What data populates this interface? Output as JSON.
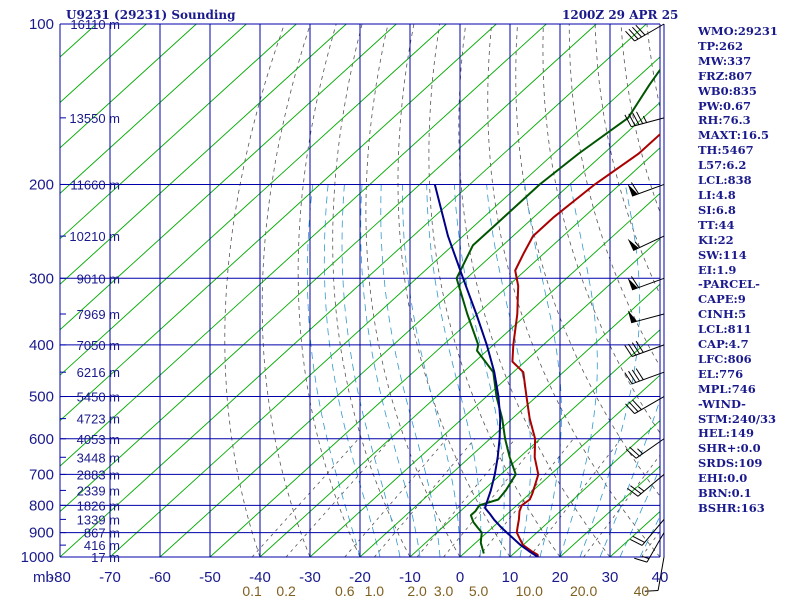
{
  "header": {
    "station": "U9231 (29231) Sounding",
    "valid_time": "1200Z 29 APR 25"
  },
  "indices": [
    "WMO:29231",
    "TP:262",
    "MW:337",
    "FRZ:807",
    "WB0:835",
    "PW:0.67",
    "RH:76.3",
    "MAXT:16.5",
    "TH:5467",
    "L57:6.2",
    "LCL:838",
    "LI:4.8",
    "SI:6.8",
    "TT:44",
    "KI:22",
    "SW:114",
    "EI:1.9",
    "-PARCEL-",
    "CAPE:9",
    "CINH:5",
    "LCL:811",
    "CAP:4.7",
    "LFC:806",
    "EL:776",
    "MPL:746",
    "-WIND-",
    "STM:240/33",
    "HEL:149",
    "SHR+:0.0",
    "SRDS:109",
    "EHI:0.0",
    "BRN:0.1",
    "BSHR:163"
  ],
  "colors": {
    "grid": "#0000aa",
    "axis_text": "#1a1a8c",
    "isotherm": "#00aa00",
    "dry_adiabat": "#555555",
    "moist_adiabat": "#3399cc",
    "temperature": "#aa0000",
    "dewpoint": "#005500",
    "parcel": "#000088",
    "mixing_ratio_text": "#806020",
    "wind_barb": "#000000"
  },
  "chart_data": {
    "type": "skew-t log-p sounding",
    "pressure_levels_mb": [
      100,
      200,
      300,
      400,
      500,
      600,
      700,
      800,
      900,
      1000
    ],
    "pressure_axis_unit": "mb",
    "temperature_ticks_c": [
      -80,
      -70,
      -60,
      -50,
      -40,
      -30,
      -20,
      -10,
      0,
      10,
      20,
      30,
      40
    ],
    "xlim_c": [
      -80,
      40
    ],
    "ylim_mb": [
      100,
      1000
    ],
    "mixing_ratio_labels": [
      "0.1",
      "0.2",
      "0.6",
      "1.0",
      "2.0",
      "3.0",
      "5.0",
      "10.0",
      "20.0",
      "40"
    ],
    "mixing_ratio_unit": "g/kg",
    "height_labels": [
      {
        "p": 100,
        "label": "16110 m"
      },
      {
        "p": 150,
        "label": "13550 m"
      },
      {
        "p": 200,
        "label": "11660 m"
      },
      {
        "p": 250,
        "label": "10210 m"
      },
      {
        "p": 300,
        "label": "9010 m"
      },
      {
        "p": 350,
        "label": "7969 m"
      },
      {
        "p": 400,
        "label": "7050 m"
      },
      {
        "p": 450,
        "label": "6216 m"
      },
      {
        "p": 500,
        "label": "5450 m"
      },
      {
        "p": 550,
        "label": "4723 m"
      },
      {
        "p": 600,
        "label": "4053 m"
      },
      {
        "p": 650,
        "label": "3448 m"
      },
      {
        "p": 700,
        "label": "2883 m"
      },
      {
        "p": 750,
        "label": "2339 m"
      },
      {
        "p": 800,
        "label": "1826 m"
      },
      {
        "p": 850,
        "label": "1339 m"
      },
      {
        "p": 900,
        "label": "867 m"
      },
      {
        "p": 950,
        "label": "416 m"
      },
      {
        "p": 1000,
        "label": "17 m"
      }
    ],
    "series": [
      {
        "name": "temperature",
        "color": "#aa0000",
        "points": [
          [
            1000,
            15.6
          ],
          [
            990,
            15
          ],
          [
            975,
            13
          ],
          [
            950,
            10
          ],
          [
            925,
            8
          ],
          [
            900,
            6
          ],
          [
            880,
            5
          ],
          [
            850,
            3.5
          ],
          [
            820,
            1.8
          ],
          [
            800,
            1
          ],
          [
            780,
            1.3
          ],
          [
            760,
            0.5
          ],
          [
            700,
            -2.5
          ],
          [
            650,
            -7
          ],
          [
            600,
            -11
          ],
          [
            550,
            -16.5
          ],
          [
            500,
            -22
          ],
          [
            450,
            -28
          ],
          [
            430,
            -32.5
          ],
          [
            400,
            -36
          ],
          [
            350,
            -42
          ],
          [
            310,
            -48
          ],
          [
            290,
            -52
          ],
          [
            270,
            -54
          ],
          [
            250,
            -56
          ],
          [
            230,
            -56
          ],
          [
            200,
            -55
          ],
          [
            175,
            -53
          ],
          [
            150,
            -53
          ],
          [
            130,
            -56
          ],
          [
            120,
            -57
          ],
          [
            110,
            -54
          ],
          [
            100,
            -56
          ]
        ]
      },
      {
        "name": "dewpoint",
        "color": "#005500",
        "points": [
          [
            985,
            4
          ],
          [
            970,
            3
          ],
          [
            940,
            1
          ],
          [
            920,
            0
          ],
          [
            900,
            -1
          ],
          [
            880,
            -3
          ],
          [
            860,
            -5
          ],
          [
            835,
            -7
          ],
          [
            820,
            -7
          ],
          [
            800,
            -7.5
          ],
          [
            780,
            -5
          ],
          [
            750,
            -5.5
          ],
          [
            700,
            -7
          ],
          [
            650,
            -12
          ],
          [
            600,
            -17
          ],
          [
            550,
            -22
          ],
          [
            500,
            -28
          ],
          [
            450,
            -34
          ],
          [
            410,
            -42
          ],
          [
            400,
            -43
          ],
          [
            350,
            -52
          ],
          [
            300,
            -62
          ],
          [
            260,
            -66
          ],
          [
            240,
            -66
          ],
          [
            200,
            -66
          ],
          [
            175,
            -65
          ],
          [
            150,
            -63
          ],
          [
            130,
            -66
          ],
          [
            110,
            -69
          ],
          [
            100,
            -70
          ]
        ]
      },
      {
        "name": "parcel",
        "color": "#000088",
        "points": [
          [
            1000,
            15.6
          ],
          [
            975,
            12.5
          ],
          [
            950,
            9.5
          ],
          [
            925,
            6.8
          ],
          [
            900,
            4
          ],
          [
            875,
            1.2
          ],
          [
            850,
            -1.5
          ],
          [
            830,
            -3.5
          ],
          [
            810,
            -5.7
          ],
          [
            800,
            -6.2
          ],
          [
            750,
            -8.5
          ],
          [
            700,
            -11.2
          ],
          [
            650,
            -14.4
          ],
          [
            600,
            -18.1
          ],
          [
            550,
            -22.4
          ],
          [
            500,
            -27.6
          ],
          [
            450,
            -33.8
          ],
          [
            400,
            -41.3
          ],
          [
            350,
            -50.2
          ],
          [
            300,
            -60.7
          ],
          [
            250,
            -73
          ],
          [
            200,
            -87
          ]
        ]
      }
    ],
    "wind_barbs": [
      {
        "p": 100,
        "dir": 240,
        "spd": 40
      },
      {
        "p": 150,
        "dir": 255,
        "spd": 45
      },
      {
        "p": 200,
        "dir": 250,
        "spd": 60
      },
      {
        "p": 250,
        "dir": 245,
        "spd": 55
      },
      {
        "p": 300,
        "dir": 250,
        "spd": 60
      },
      {
        "p": 350,
        "dir": 255,
        "spd": 50
      },
      {
        "p": 400,
        "dir": 250,
        "spd": 40
      },
      {
        "p": 450,
        "dir": 250,
        "spd": 40
      },
      {
        "p": 500,
        "dir": 240,
        "spd": 30
      },
      {
        "p": 600,
        "dir": 235,
        "spd": 25
      },
      {
        "p": 700,
        "dir": 230,
        "spd": 25
      },
      {
        "p": 850,
        "dir": 220,
        "spd": 20
      },
      {
        "p": 900,
        "dir": 210,
        "spd": 15
      },
      {
        "p": 1000,
        "dir": 190,
        "spd": 10
      }
    ]
  }
}
